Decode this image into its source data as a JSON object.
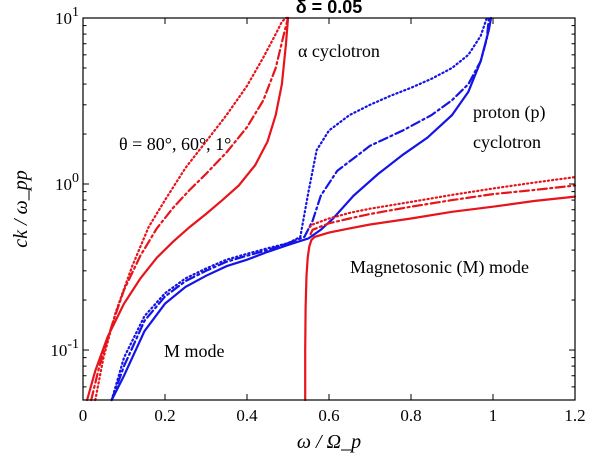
{
  "chart_data": {
    "type": "line",
    "title": "δ = 0.05",
    "xlabel": "ω / Ω_p",
    "ylabel": "ck / ω_pp",
    "xlim": [
      0,
      1.2
    ],
    "ylim": [
      0.05,
      10
    ],
    "yscale": "log",
    "grid": false,
    "xticks": [
      "0",
      "0.2",
      "0.4",
      "0.6",
      "0.8",
      "1",
      "1.2"
    ],
    "yticks": [
      "10^-1",
      "10^0",
      "10^1"
    ],
    "annotations": {
      "theta": "θ = 80°, 60°, 1°",
      "alpha": "α cyclotron",
      "proton_1": "proton (p)",
      "proton_2": "cyclotron",
      "magneto": "Magnetosonic (M) mode",
      "mmode": "M mode"
    },
    "colors": {
      "red": "#e8141b",
      "blue": "#1414e6"
    },
    "series": [
      {
        "color": "red",
        "dash": "dotted",
        "x": [
          0.03,
          0.05,
          0.08,
          0.12,
          0.16,
          0.2,
          0.25,
          0.3,
          0.35,
          0.4,
          0.44,
          0.47,
          0.485,
          0.495,
          0.5
        ],
        "y": [
          0.05,
          0.09,
          0.17,
          0.32,
          0.55,
          0.8,
          1.25,
          1.8,
          2.6,
          3.9,
          5.8,
          8,
          9.5,
          10,
          10
        ]
      },
      {
        "color": "red",
        "dash": "dashdot",
        "x": [
          0.02,
          0.04,
          0.07,
          0.1,
          0.14,
          0.18,
          0.22,
          0.26,
          0.3,
          0.35,
          0.4,
          0.44,
          0.47,
          0.49,
          0.5
        ],
        "y": [
          0.05,
          0.08,
          0.14,
          0.23,
          0.37,
          0.54,
          0.72,
          0.92,
          1.15,
          1.55,
          2.2,
          3.2,
          5,
          8,
          10
        ]
      },
      {
        "color": "red",
        "dash": "solid",
        "x": [
          0.01,
          0.03,
          0.06,
          0.1,
          0.14,
          0.18,
          0.22,
          0.26,
          0.3,
          0.34,
          0.38,
          0.42,
          0.45,
          0.47,
          0.485,
          0.495,
          0.5
        ],
        "y": [
          0.05,
          0.075,
          0.12,
          0.19,
          0.27,
          0.36,
          0.45,
          0.55,
          0.66,
          0.8,
          0.98,
          1.3,
          1.8,
          2.6,
          4,
          7,
          10
        ]
      },
      {
        "color": "blue",
        "dash": "dotted",
        "x": [
          0.07,
          0.1,
          0.15,
          0.2,
          0.25,
          0.3,
          0.35,
          0.4,
          0.45,
          0.5,
          0.53,
          0.55,
          0.57,
          0.6,
          0.65,
          0.7,
          0.75,
          0.8,
          0.85,
          0.9,
          0.94,
          0.97,
          0.985
        ],
        "y": [
          0.05,
          0.09,
          0.16,
          0.22,
          0.27,
          0.31,
          0.35,
          0.38,
          0.41,
          0.44,
          0.48,
          0.9,
          1.6,
          2.1,
          2.6,
          3,
          3.4,
          3.8,
          4.3,
          5,
          6,
          7.8,
          10
        ]
      },
      {
        "color": "blue",
        "dash": "dashdot",
        "x": [
          0.07,
          0.1,
          0.15,
          0.2,
          0.25,
          0.3,
          0.35,
          0.4,
          0.45,
          0.5,
          0.54,
          0.56,
          0.58,
          0.62,
          0.7,
          0.78,
          0.85,
          0.9,
          0.94,
          0.97,
          0.985,
          0.99
        ],
        "y": [
          0.05,
          0.08,
          0.15,
          0.21,
          0.26,
          0.3,
          0.34,
          0.37,
          0.4,
          0.44,
          0.48,
          0.6,
          0.85,
          1.2,
          1.7,
          2.1,
          2.6,
          3.2,
          4,
          5.5,
          7.5,
          10
        ]
      },
      {
        "color": "blue",
        "dash": "solid",
        "x": [
          0.07,
          0.1,
          0.15,
          0.2,
          0.25,
          0.3,
          0.35,
          0.4,
          0.45,
          0.5,
          0.55,
          0.58,
          0.61,
          0.66,
          0.72,
          0.78,
          0.84,
          0.9,
          0.94,
          0.97,
          0.99,
          0.995
        ],
        "y": [
          0.05,
          0.07,
          0.13,
          0.19,
          0.24,
          0.28,
          0.32,
          0.35,
          0.39,
          0.43,
          0.47,
          0.53,
          0.62,
          0.85,
          1.15,
          1.5,
          1.9,
          2.6,
          3.6,
          5.5,
          8.5,
          10
        ]
      },
      {
        "color": "red",
        "dash": "dotted",
        "x": [
          0.553,
          0.56,
          0.6,
          0.65,
          0.7,
          0.8,
          0.9,
          1.0,
          1.1,
          1.2
        ],
        "y": [
          0.55,
          0.57,
          0.62,
          0.67,
          0.71,
          0.78,
          0.86,
          0.94,
          1.02,
          1.1
        ]
      },
      {
        "color": "red",
        "dash": "dashdot",
        "x": [
          0.555,
          0.56,
          0.6,
          0.65,
          0.7,
          0.8,
          0.9,
          1.0,
          1.1,
          1.2
        ],
        "y": [
          0.5,
          0.53,
          0.58,
          0.62,
          0.66,
          0.73,
          0.8,
          0.87,
          0.92,
          0.98
        ]
      },
      {
        "color": "red",
        "dash": "solid",
        "x": [
          0.542,
          0.542,
          0.543,
          0.545,
          0.548,
          0.552,
          0.557,
          0.565,
          0.6,
          0.65,
          0.7,
          0.8,
          0.9,
          1.0,
          1.1,
          1.2
        ],
        "y": [
          0.05,
          0.1,
          0.18,
          0.28,
          0.36,
          0.42,
          0.46,
          0.48,
          0.51,
          0.54,
          0.57,
          0.62,
          0.68,
          0.73,
          0.79,
          0.84
        ]
      }
    ]
  }
}
